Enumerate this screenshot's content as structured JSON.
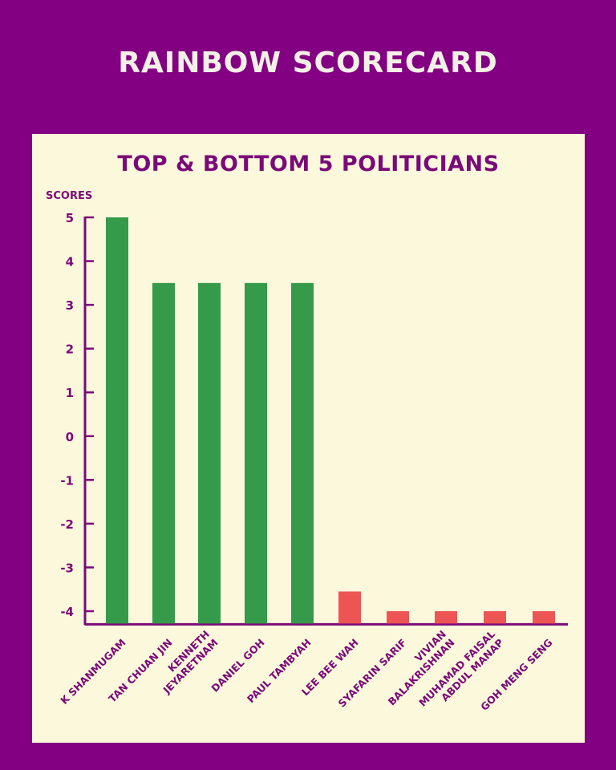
{
  "header": {
    "title": "RAINBOW SCORECARD"
  },
  "chart_data": {
    "type": "bar",
    "title": "TOP & BOTTOM 5 POLITICIANS",
    "ylabel": "SCORES",
    "xlabel": "",
    "ylim": [
      -4.3,
      5
    ],
    "yticks": [
      "5",
      "4",
      "3",
      "2",
      "1",
      "0",
      "-1",
      "-2",
      "-3",
      "-4"
    ],
    "categories": [
      "K SHANMUGAM",
      "TAN CHUAN JIN",
      "KENNETH JEYARETNAM",
      "DANIEL GOH",
      "PAUL TAMBYAH",
      "LEE BEE WAH",
      "SYAFARIN SARIF",
      "VIVIAN BALAKRISHNAN",
      "MUHAMAD FAISAL ABDUL MANAP",
      "GOH MENG SENG"
    ],
    "category_lines": [
      [
        "K SHANMUGAM"
      ],
      [
        "TAN CHUAN JIN"
      ],
      [
        "KENNETH",
        "JEYARETNAM"
      ],
      [
        "DANIEL GOH"
      ],
      [
        "PAUL TAMBYAH"
      ],
      [
        "LEE BEE WAH"
      ],
      [
        "SYAFARIN SARIF"
      ],
      [
        "VIVIAN",
        "BALAKRISHNAN"
      ],
      [
        "MUHAMAD FAISAL",
        "ABDUL MANAP"
      ],
      [
        "GOH MENG SENG"
      ]
    ],
    "values": [
      5,
      3.5,
      3.5,
      3.5,
      3.5,
      -3.55,
      -4,
      -4,
      -4,
      -4
    ],
    "colors": {
      "top": "#359a49",
      "bottom": "#ec5554",
      "axis": "#7a0a78",
      "panel": "#fbf8dc",
      "background": "#820081"
    }
  }
}
